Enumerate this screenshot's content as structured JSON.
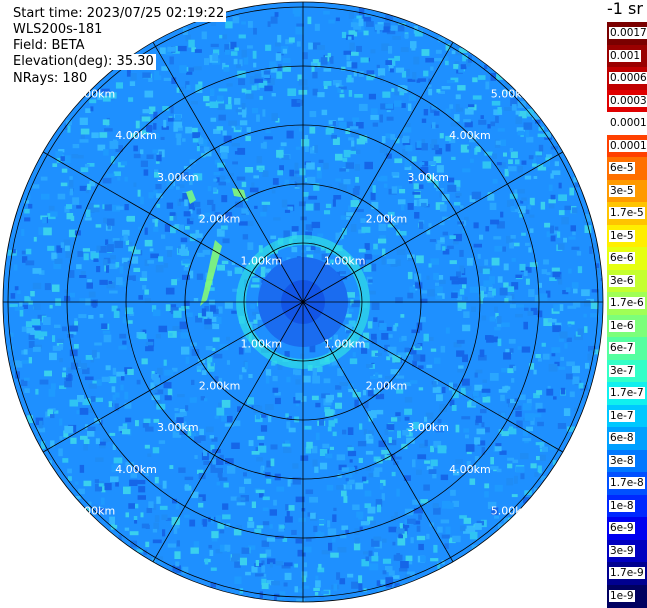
{
  "info": {
    "start_time": "Start time: 2023/07/25 02:19:22",
    "instrument": "WLS200s-181",
    "field": "Field: BETA",
    "elevation": "Elevation(deg): 35.30",
    "nrays": "NRays: 180"
  },
  "range_rings": {
    "values": [
      "1.00km",
      "2.00km",
      "3.00km",
      "4.00km",
      "5.00km"
    ]
  },
  "colorbar": {
    "unit": "-1 sr",
    "labels": [
      "0.0017",
      "0.001",
      "0.0006",
      "0.0003",
      "0.00017",
      "0.0001",
      "6e-5",
      "3e-5",
      "1.7e-5",
      "1e-5",
      "6e-6",
      "3e-6",
      "1.7e-6",
      "1e-6",
      "6e-7",
      "3e-7",
      "1.7e-7",
      "1e-7",
      "6e-8",
      "3e-8",
      "1.7e-8",
      "1e-8",
      "6e-9",
      "3e-9",
      "1.7e-9",
      "1e-9"
    ],
    "colors": [
      "#7a0000",
      "#9a0000",
      "#c00000",
      "#e00000",
      "#ffffff",
      "#ff4000",
      "#ff7000",
      "#ff9a00",
      "#ffc400",
      "#ffee00",
      "#e6ff10",
      "#c4ff30",
      "#a0ff55",
      "#7cff7a",
      "#55ffa0",
      "#33ffc8",
      "#10f0ee",
      "#00c8ff",
      "#00a0ff",
      "#0078ff",
      "#0050ff",
      "#0028ff",
      "#0000f0",
      "#0000c0",
      "#000090",
      "#000060"
    ]
  }
}
